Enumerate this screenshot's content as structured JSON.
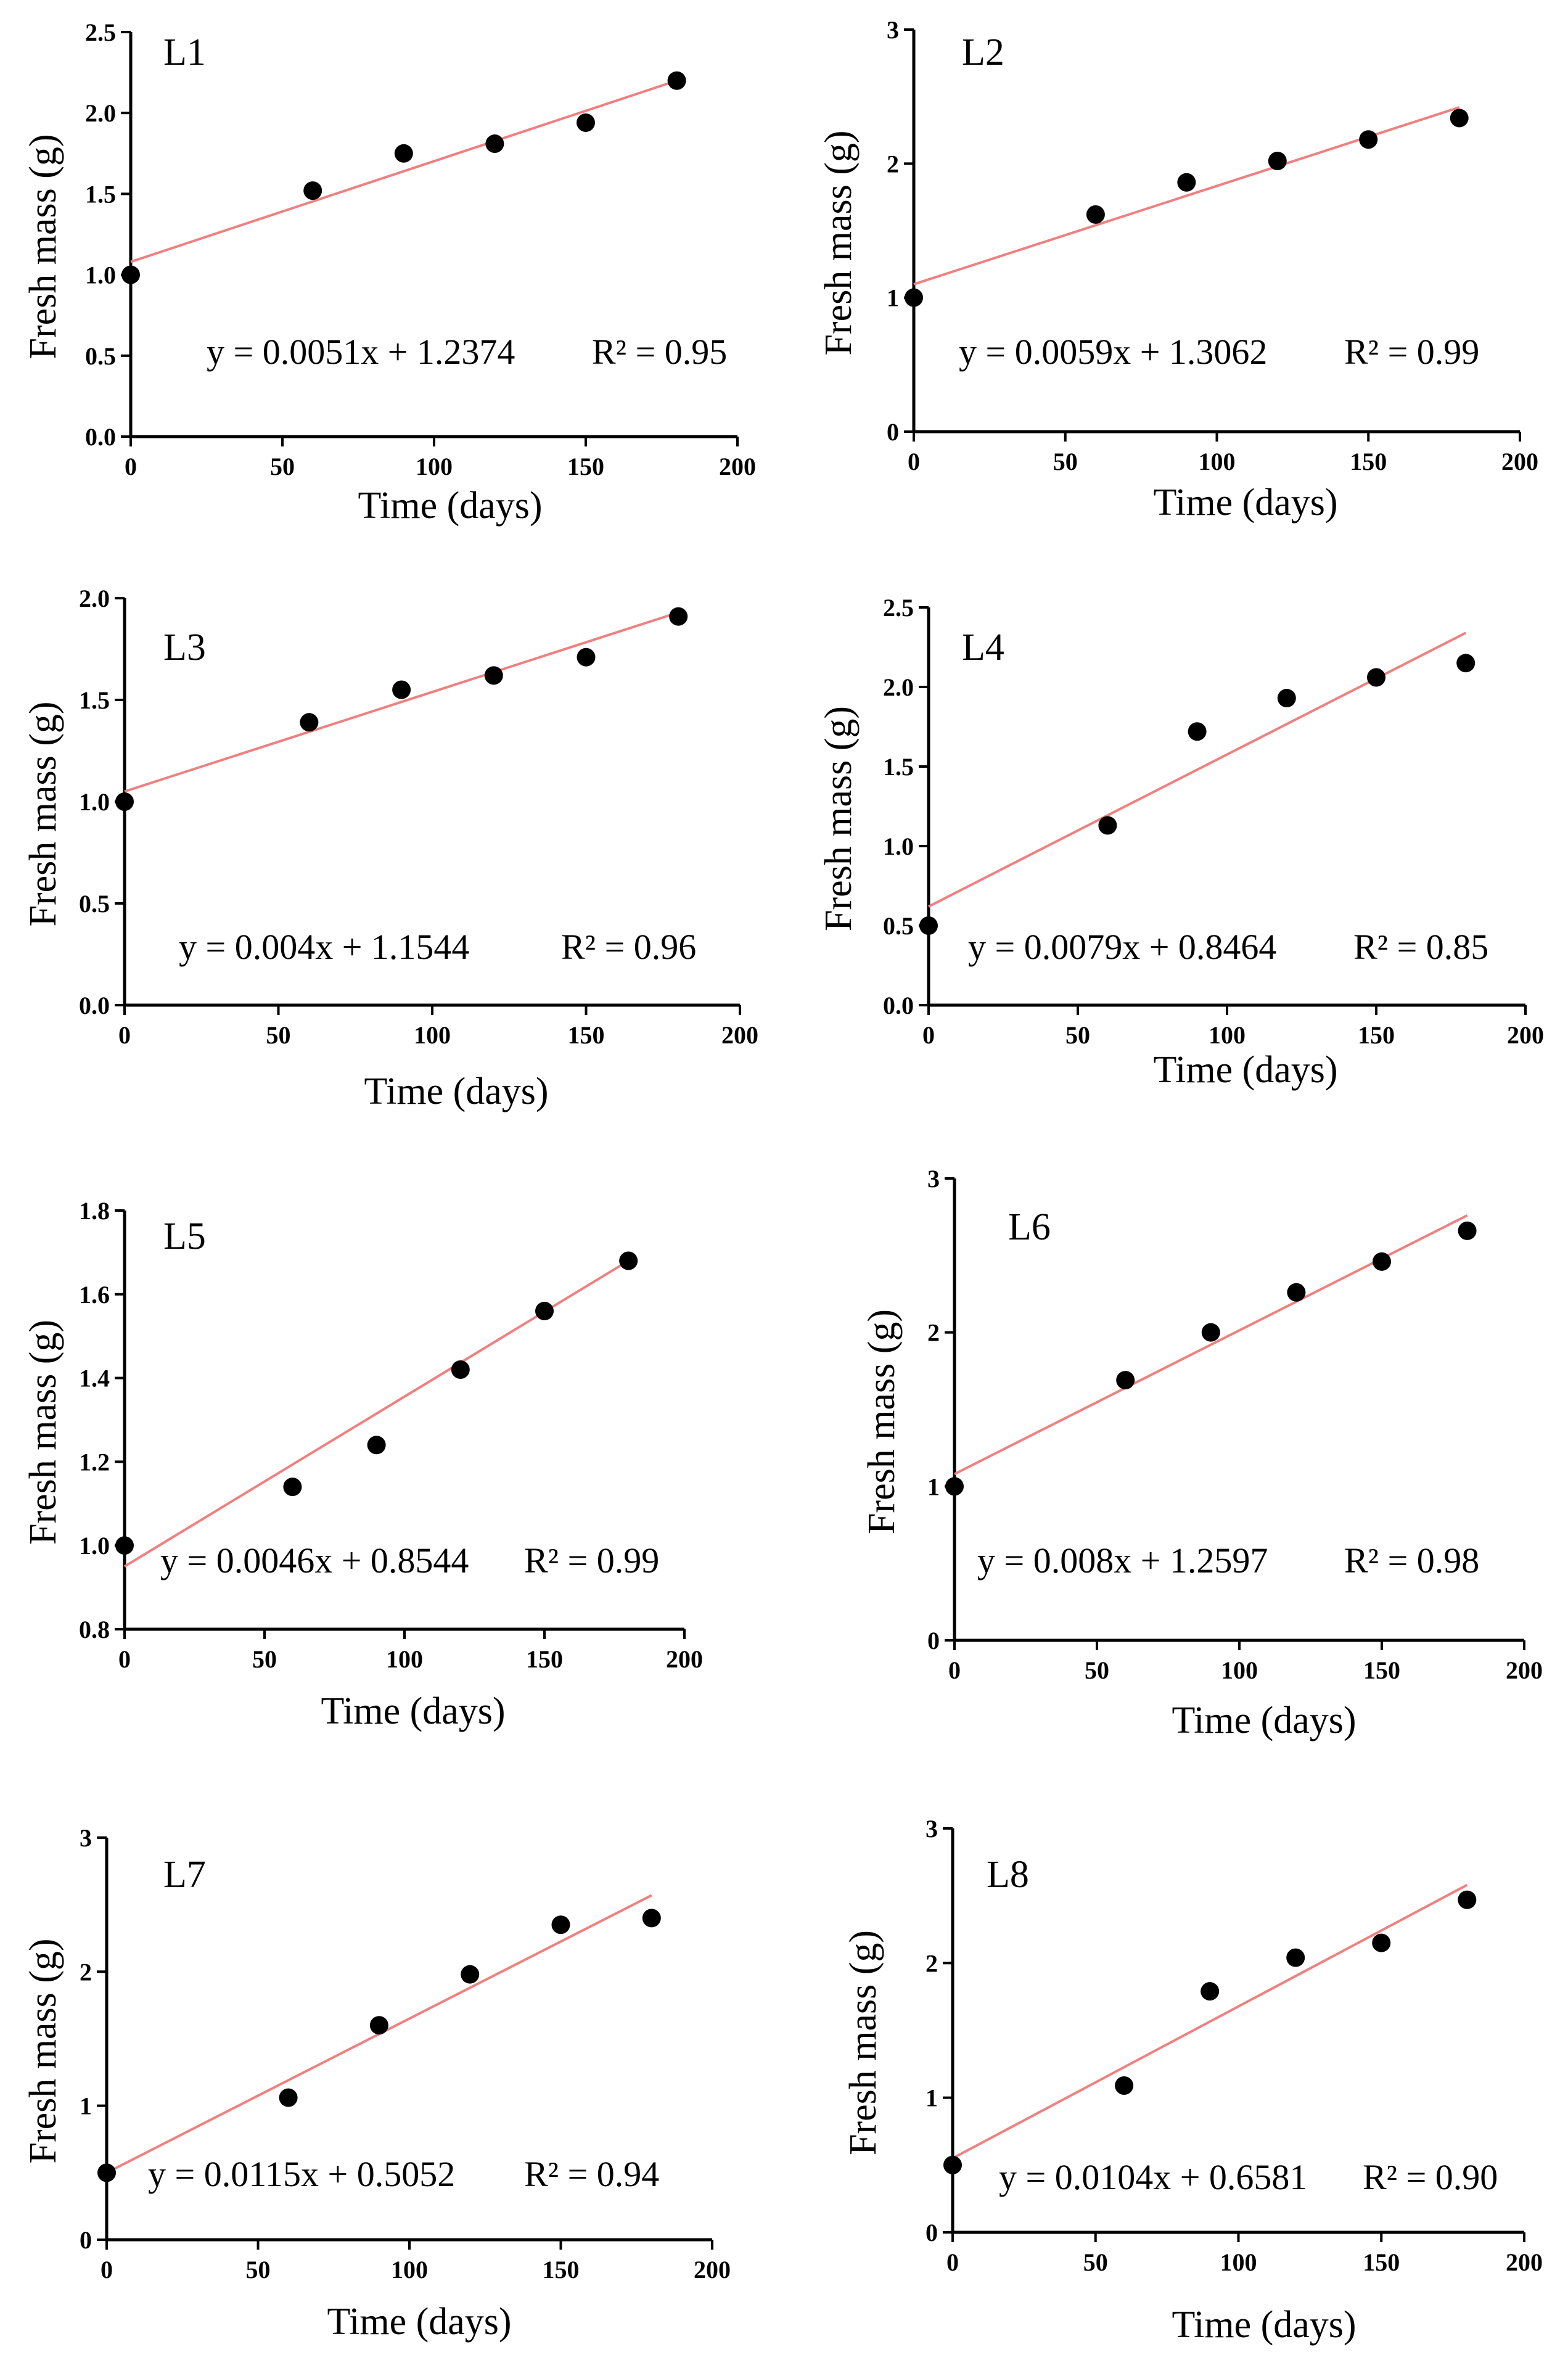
{
  "colors": {
    "points": "#000000",
    "fit_line": "#f08080",
    "axis": "#000000"
  },
  "chart_data": [
    {
      "type": "scatter",
      "label": "L1",
      "xlabel": "Time (days)",
      "ylabel": "Fresh mass (g)",
      "xlim": [
        0,
        200
      ],
      "ylim": [
        0,
        2.5
      ],
      "x_ticks": [
        0,
        50,
        100,
        150,
        200
      ],
      "x_tick_labels": [
        "0",
        "50",
        "100",
        "150",
        "200"
      ],
      "y_ticks": [
        0,
        0.5,
        1,
        1.5,
        2,
        2.5
      ],
      "y_tick_labels": [
        "0.0",
        "0.5",
        "1.0",
        "1.5",
        "2.0",
        "2.5"
      ],
      "x": [
        0,
        60,
        90,
        120,
        150,
        180
      ],
      "y": [
        1.0,
        1.52,
        1.75,
        1.81,
        1.94,
        2.2
      ],
      "fit": {
        "x_start": 0,
        "y_start": 1.08,
        "x_end": 180,
        "y_end": 2.2
      },
      "equation": "y = 0.0051x + 1.2374",
      "r2": "R² = 0.95"
    },
    {
      "type": "scatter",
      "label": "L2",
      "xlabel": "Time (days)",
      "ylabel": "Fresh mass (g)",
      "xlim": [
        0,
        200
      ],
      "ylim": [
        0,
        3
      ],
      "x_ticks": [
        0,
        50,
        100,
        150,
        200
      ],
      "x_tick_labels": [
        "0",
        "50",
        "100",
        "150",
        "200"
      ],
      "y_ticks": [
        0,
        1,
        2,
        3
      ],
      "y_tick_labels": [
        "0",
        "1",
        "2",
        "3"
      ],
      "x": [
        0,
        60,
        90,
        120,
        150,
        180
      ],
      "y": [
        1.0,
        1.62,
        1.86,
        2.02,
        2.18,
        2.34
      ],
      "fit": {
        "x_start": 0,
        "y_start": 1.1,
        "x_end": 180,
        "y_end": 2.42
      },
      "equation": "y = 0.0059x + 1.3062",
      "r2": "R² = 0.99"
    },
    {
      "type": "scatter",
      "label": "L3",
      "xlabel": "Time (days)",
      "ylabel": "Fresh mass (g)",
      "xlim": [
        0,
        200
      ],
      "ylim": [
        0,
        2
      ],
      "x_ticks": [
        0,
        50,
        100,
        150,
        200
      ],
      "x_tick_labels": [
        "0",
        "50",
        "100",
        "150",
        "200"
      ],
      "y_ticks": [
        0,
        0.5,
        1,
        1.5,
        2
      ],
      "y_tick_labels": [
        "0.0",
        "0.5",
        "1.0",
        "1.5",
        "2.0"
      ],
      "x": [
        0,
        60,
        90,
        120,
        150,
        180
      ],
      "y": [
        1.0,
        1.39,
        1.55,
        1.62,
        1.71,
        1.91
      ],
      "fit": {
        "x_start": 0,
        "y_start": 1.05,
        "x_end": 180,
        "y_end": 1.93
      },
      "equation": "y = 0.004x + 1.1544",
      "r2": "R²  = 0.96"
    },
    {
      "type": "scatter",
      "label": "L4",
      "xlabel": "Time (days)",
      "ylabel": "Fresh mass (g)",
      "xlim": [
        0,
        200
      ],
      "ylim": [
        0,
        2.5
      ],
      "x_ticks": [
        0,
        50,
        100,
        150,
        200
      ],
      "x_tick_labels": [
        "0",
        "50",
        "100",
        "150",
        "200"
      ],
      "y_ticks": [
        0,
        0.5,
        1,
        1.5,
        2,
        2.5
      ],
      "y_tick_labels": [
        "0.0",
        "0.5",
        "1.0",
        "1.5",
        "2.0",
        "2.5"
      ],
      "x": [
        0,
        60,
        90,
        120,
        150,
        180
      ],
      "y": [
        0.5,
        1.13,
        1.72,
        1.93,
        2.06,
        2.15
      ],
      "fit": {
        "x_start": 0,
        "y_start": 0.62,
        "x_end": 180,
        "y_end": 2.34
      },
      "equation": "y = 0.0079x + 0.8464",
      "r2": "R²  = 0.85"
    },
    {
      "type": "scatter",
      "label": "L5",
      "xlabel": "Time (days)",
      "ylabel": "Fresh mass (g)",
      "xlim": [
        0,
        200
      ],
      "ylim": [
        0.8,
        1.8
      ],
      "x_ticks": [
        0,
        50,
        100,
        150,
        200
      ],
      "x_tick_labels": [
        "0",
        "50",
        "100",
        "150",
        "200"
      ],
      "y_ticks": [
        0.8,
        1.0,
        1.2,
        1.4,
        1.6,
        1.8
      ],
      "y_tick_labels": [
        "0.8",
        "1.0",
        "1.2",
        "1.4",
        "1.6",
        "1.8"
      ],
      "x": [
        0,
        60,
        90,
        120,
        150,
        180
      ],
      "y": [
        1.0,
        1.14,
        1.24,
        1.42,
        1.56,
        1.68
      ],
      "fit": {
        "x_start": 0,
        "y_start": 0.95,
        "x_end": 180,
        "y_end": 1.68
      },
      "equation": "y = 0.0046x + 0.8544",
      "r2": "R² = 0.99"
    },
    {
      "type": "scatter",
      "label": "L6",
      "xlabel": "Time (days)",
      "ylabel": "Fresh mass (g)",
      "xlim": [
        0,
        200
      ],
      "ylim": [
        0,
        3
      ],
      "x_ticks": [
        0,
        50,
        100,
        150,
        200
      ],
      "x_tick_labels": [
        "0",
        "50",
        "100",
        "150",
        "200"
      ],
      "y_ticks": [
        0,
        1,
        2,
        3
      ],
      "y_tick_labels": [
        "0",
        "1",
        "2",
        "3"
      ],
      "x": [
        0,
        60,
        90,
        120,
        150,
        180
      ],
      "y": [
        1.0,
        1.69,
        2.0,
        2.26,
        2.46,
        2.66
      ],
      "fit": {
        "x_start": 0,
        "y_start": 1.08,
        "x_end": 180,
        "y_end": 2.76
      },
      "equation": "y = 0.008x + 1.2597",
      "r2": "R²  = 0.98"
    },
    {
      "type": "scatter",
      "label": "L7",
      "xlabel": "Time (days)",
      "ylabel": "Fresh mass (g)",
      "xlim": [
        0,
        200
      ],
      "ylim": [
        0,
        3
      ],
      "x_ticks": [
        0,
        50,
        100,
        150,
        200
      ],
      "x_tick_labels": [
        "0",
        "50",
        "100",
        "150",
        "200"
      ],
      "y_ticks": [
        0,
        1,
        2,
        3
      ],
      "y_tick_labels": [
        "0",
        "1",
        "2",
        "3"
      ],
      "x": [
        0,
        60,
        90,
        120,
        150,
        180
      ],
      "y": [
        0.5,
        1.06,
        1.6,
        1.98,
        2.35,
        2.4
      ],
      "fit": {
        "x_start": 0,
        "y_start": 0.5,
        "x_end": 180,
        "y_end": 2.57
      },
      "equation": "y = 0.0115x + 0.5052",
      "r2": "R²  = 0.94"
    },
    {
      "type": "scatter",
      "label": "L8",
      "xlabel": "Time (days)",
      "ylabel": "Fresh mass (g)",
      "xlim": [
        0,
        200
      ],
      "ylim": [
        0,
        3
      ],
      "x_ticks": [
        0,
        50,
        100,
        150,
        200
      ],
      "x_tick_labels": [
        "0",
        "50",
        "100",
        "150",
        "200"
      ],
      "y_ticks": [
        0,
        1,
        2,
        3
      ],
      "y_tick_labels": [
        "0",
        "1",
        "2",
        "3"
      ],
      "x": [
        0,
        60,
        90,
        120,
        150,
        180
      ],
      "y": [
        0.5,
        1.09,
        1.79,
        2.04,
        2.15,
        2.47
      ],
      "fit": {
        "x_start": 0,
        "y_start": 0.55,
        "x_end": 180,
        "y_end": 2.58
      },
      "equation": "y = 0.0104x + 0.6581",
      "r2": "R² = 0.90"
    }
  ]
}
